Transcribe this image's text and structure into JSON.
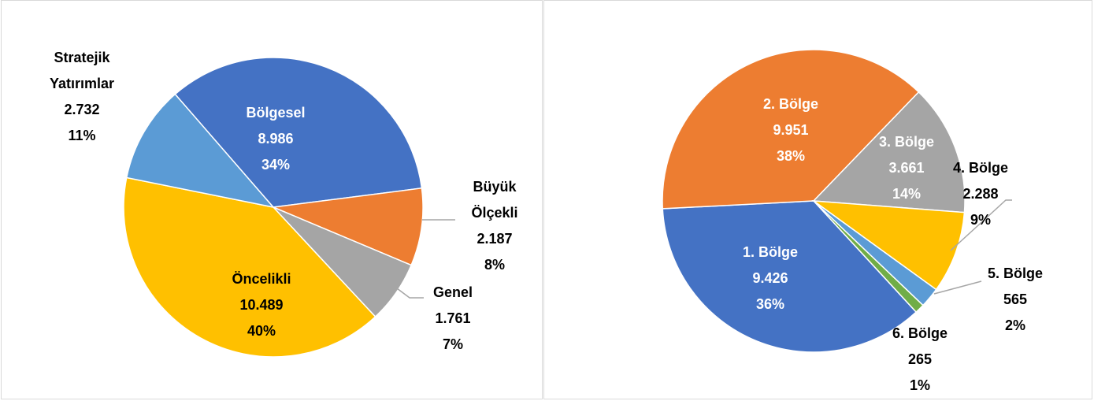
{
  "chart_data": [
    {
      "type": "pie",
      "categories": [
        "Bölgesel",
        "Büyük Ölçekli",
        "Genel",
        "Öncelikli",
        "Stratejik Yatırımlar"
      ],
      "values": [
        8986,
        2187,
        1761,
        10489,
        2732
      ],
      "value_labels": [
        "8.986",
        "2.187",
        "1.761",
        "10.489",
        "2.732"
      ],
      "percents": [
        34,
        8,
        7,
        40,
        11
      ],
      "percent_labels": [
        "34%",
        "8%",
        "7%",
        "40%",
        "11%"
      ],
      "colors": [
        "#4472c4",
        "#ed7d31",
        "#a5a5a5",
        "#ffc000",
        "#5b9bd5"
      ]
    },
    {
      "type": "pie",
      "categories": [
        "1. Bölge",
        "2. Bölge",
        "3. Bölge",
        "4. Bölge",
        "5. Bölge",
        "6. Bölge"
      ],
      "values": [
        9426,
        9951,
        3661,
        2288,
        565,
        265
      ],
      "value_labels": [
        "9.426",
        "9.951",
        "3.661",
        "2.288",
        "565",
        "265"
      ],
      "percents": [
        36,
        38,
        14,
        9,
        2,
        1
      ],
      "percent_labels": [
        "36%",
        "38%",
        "14%",
        "9%",
        "2%",
        "1%"
      ],
      "colors": [
        "#4472c4",
        "#ed7d31",
        "#a5a5a5",
        "#ffc000",
        "#5b9bd5",
        "#70ad47"
      ]
    }
  ]
}
